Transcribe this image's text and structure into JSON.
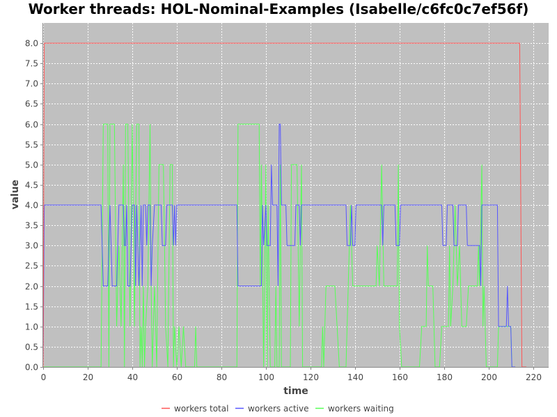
{
  "chart_data": {
    "type": "line",
    "title": "Worker threads: HOL-Nominal-Examples (Isabelle/c6fc0c7ef56f)",
    "xlabel": "time",
    "ylabel": "value",
    "xlim": [
      0,
      227
    ],
    "ylim": [
      0,
      8.5
    ],
    "xticks": [
      "0",
      "20",
      "40",
      "60",
      "80",
      "100",
      "120",
      "140",
      "160",
      "180",
      "200",
      "220"
    ],
    "yticks": [
      "0.0",
      "0.5",
      "1.0",
      "1.5",
      "2.0",
      "2.5",
      "3.0",
      "3.5",
      "4.0",
      "4.5",
      "5.0",
      "5.5",
      "6.0",
      "6.5",
      "7.0",
      "7.5",
      "8.0"
    ],
    "grid": true,
    "legend_position": "bottom",
    "colors": {
      "plot_background": "#c0c0c0",
      "grid": "#ffffff",
      "workers_total": "#ff5555",
      "workers_active": "#5555ff",
      "workers_waiting": "#55ff55"
    },
    "series": [
      {
        "name": "workers total",
        "color": "#ff5555",
        "points": [
          [
            0,
            0
          ],
          [
            0.5,
            8
          ],
          [
            214,
            8
          ],
          [
            215,
            0
          ],
          [
            217,
            0
          ]
        ]
      },
      {
        "name": "workers active",
        "color": "#5555ff",
        "points": [
          [
            0,
            0
          ],
          [
            0.5,
            4
          ],
          [
            26,
            4
          ],
          [
            27,
            2
          ],
          [
            29,
            2
          ],
          [
            30,
            4
          ],
          [
            31,
            2
          ],
          [
            33,
            2
          ],
          [
            34,
            4
          ],
          [
            36,
            4
          ],
          [
            36.5,
            3
          ],
          [
            37,
            3
          ],
          [
            37.5,
            4
          ],
          [
            38,
            2
          ],
          [
            39,
            2
          ],
          [
            40,
            4
          ],
          [
            41,
            4
          ],
          [
            41.5,
            2
          ],
          [
            42,
            4
          ],
          [
            43,
            2
          ],
          [
            44,
            4
          ],
          [
            44.5,
            2
          ],
          [
            45,
            4
          ],
          [
            46,
            4
          ],
          [
            46.5,
            3
          ],
          [
            47,
            4
          ],
          [
            48,
            4
          ],
          [
            48.5,
            2
          ],
          [
            49,
            3
          ],
          [
            50,
            4
          ],
          [
            53,
            4
          ],
          [
            53.5,
            3
          ],
          [
            55,
            3
          ],
          [
            55.5,
            4
          ],
          [
            58,
            4
          ],
          [
            58.5,
            3
          ],
          [
            59,
            4
          ],
          [
            59.5,
            3
          ],
          [
            60,
            4
          ],
          [
            87,
            4
          ],
          [
            87.5,
            2
          ],
          [
            98,
            2
          ],
          [
            98.5,
            4
          ],
          [
            99,
            3
          ],
          [
            100,
            4
          ],
          [
            100.5,
            3
          ],
          [
            102,
            3
          ],
          [
            102.5,
            5
          ],
          [
            103,
            4
          ],
          [
            105,
            4
          ],
          [
            105.5,
            2
          ],
          [
            106,
            6
          ],
          [
            106.5,
            6
          ],
          [
            107,
            4
          ],
          [
            109,
            4
          ],
          [
            109.5,
            3
          ],
          [
            113,
            3
          ],
          [
            113.5,
            4
          ],
          [
            115,
            4
          ],
          [
            115.5,
            3
          ],
          [
            116,
            4
          ],
          [
            136,
            4
          ],
          [
            136.5,
            3
          ],
          [
            138,
            3
          ],
          [
            138.5,
            4
          ],
          [
            139,
            3
          ],
          [
            140,
            3
          ],
          [
            140.5,
            4
          ],
          [
            152,
            4
          ],
          [
            152.5,
            3
          ],
          [
            153,
            4
          ],
          [
            158,
            4
          ],
          [
            158.5,
            3
          ],
          [
            160,
            3
          ],
          [
            160.5,
            4
          ],
          [
            179,
            4
          ],
          [
            179.5,
            3
          ],
          [
            181,
            3
          ],
          [
            181.5,
            4
          ],
          [
            184,
            4
          ],
          [
            184.5,
            3
          ],
          [
            186,
            3
          ],
          [
            186.5,
            4
          ],
          [
            190,
            4
          ],
          [
            190.5,
            3
          ],
          [
            196,
            3
          ],
          [
            196.5,
            2
          ],
          [
            197,
            4
          ],
          [
            204,
            4
          ],
          [
            204.5,
            1
          ],
          [
            208,
            1
          ],
          [
            208.5,
            2
          ],
          [
            209,
            1
          ],
          [
            210,
            1
          ],
          [
            210.5,
            0
          ],
          [
            212,
            0
          ]
        ]
      },
      {
        "name": "workers waiting",
        "color": "#55ff55",
        "points": [
          [
            0,
            0
          ],
          [
            26,
            0
          ],
          [
            27,
            6
          ],
          [
            29,
            6
          ],
          [
            29.5,
            0
          ],
          [
            30,
            6
          ],
          [
            32,
            6
          ],
          [
            33,
            1
          ],
          [
            34,
            3
          ],
          [
            35,
            1
          ],
          [
            36,
            5
          ],
          [
            36.5,
            0
          ],
          [
            37,
            6
          ],
          [
            38,
            6
          ],
          [
            39,
            1
          ],
          [
            40,
            6
          ],
          [
            41,
            1
          ],
          [
            42,
            6
          ],
          [
            43,
            6
          ],
          [
            43.5,
            0
          ],
          [
            44,
            1
          ],
          [
            44.5,
            0
          ],
          [
            45,
            2
          ],
          [
            45.5,
            0
          ],
          [
            46,
            1
          ],
          [
            47,
            2
          ],
          [
            48,
            6
          ],
          [
            48.5,
            2
          ],
          [
            49,
            0
          ],
          [
            50,
            2
          ],
          [
            51,
            0
          ],
          [
            52,
            5
          ],
          [
            54,
            5
          ],
          [
            55,
            1
          ],
          [
            56,
            0
          ],
          [
            57,
            5
          ],
          [
            58,
            5
          ],
          [
            58.5,
            0
          ],
          [
            59,
            1
          ],
          [
            60,
            0
          ],
          [
            61,
            1
          ],
          [
            62,
            0
          ],
          [
            63,
            1
          ],
          [
            64,
            0
          ],
          [
            68,
            0
          ],
          [
            68.5,
            1
          ],
          [
            69,
            0
          ],
          [
            87,
            0
          ],
          [
            87.5,
            6
          ],
          [
            97,
            6
          ],
          [
            97.5,
            2
          ],
          [
            98,
            5
          ],
          [
            99,
            0
          ],
          [
            100,
            5
          ],
          [
            100.5,
            0
          ],
          [
            101,
            4
          ],
          [
            102,
            0
          ],
          [
            104,
            0
          ],
          [
            104.5,
            2
          ],
          [
            105,
            0
          ],
          [
            106,
            0
          ],
          [
            106.5,
            5
          ],
          [
            107,
            0
          ],
          [
            111,
            0
          ],
          [
            111.5,
            5
          ],
          [
            114,
            5
          ],
          [
            115,
            1
          ],
          [
            116,
            5
          ],
          [
            116.5,
            0
          ],
          [
            125,
            0
          ],
          [
            125.5,
            1
          ],
          [
            126,
            0
          ],
          [
            127,
            2
          ],
          [
            131,
            2
          ],
          [
            132,
            1
          ],
          [
            133,
            0
          ],
          [
            136,
            0
          ],
          [
            137,
            2
          ],
          [
            138,
            4
          ],
          [
            139,
            2
          ],
          [
            149,
            2
          ],
          [
            149.5,
            2
          ],
          [
            150,
            3
          ],
          [
            151,
            2
          ],
          [
            152,
            5
          ],
          [
            153,
            2
          ],
          [
            159,
            2
          ],
          [
            159.5,
            5
          ],
          [
            160,
            1
          ],
          [
            161,
            0
          ],
          [
            169,
            0
          ],
          [
            170,
            1
          ],
          [
            172,
            1
          ],
          [
            172.5,
            3
          ],
          [
            173,
            2
          ],
          [
            175,
            2
          ],
          [
            176,
            0
          ],
          [
            178,
            0
          ],
          [
            179,
            1
          ],
          [
            182,
            1
          ],
          [
            182.5,
            3
          ],
          [
            183,
            1
          ],
          [
            184,
            2
          ],
          [
            185,
            4
          ],
          [
            186,
            2
          ],
          [
            187,
            3
          ],
          [
            188,
            1
          ],
          [
            190,
            1
          ],
          [
            191,
            2
          ],
          [
            195,
            2
          ],
          [
            195.5,
            3
          ],
          [
            196,
            2
          ],
          [
            197,
            5
          ],
          [
            197.5,
            1
          ],
          [
            198,
            2
          ],
          [
            199,
            0
          ],
          [
            204,
            0
          ],
          [
            204.5,
            1
          ],
          [
            210,
            1
          ],
          [
            210.5,
            0
          ],
          [
            212,
            0
          ]
        ]
      }
    ]
  }
}
